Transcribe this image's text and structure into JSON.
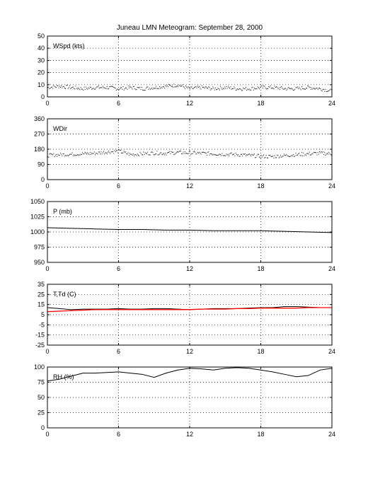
{
  "title": "Juneau LMN Meteogram: September 28, 2000",
  "colors": {
    "axis": "#000000",
    "temperature": "#000000",
    "dewpoint": "#ff0000",
    "grid": "#000000"
  },
  "chart_data": [
    {
      "type": "scatter",
      "label": "WSpd (kts)",
      "xlim": [
        0,
        24
      ],
      "ylim": [
        0,
        50
      ],
      "xticks": [
        0,
        6,
        12,
        18,
        24
      ],
      "yticks": [
        0,
        10,
        20,
        30,
        40,
        50
      ],
      "grid": true,
      "series": [
        {
          "x": [
            0,
            1,
            2,
            3,
            4,
            5,
            6,
            7,
            8,
            9,
            10,
            11,
            12,
            13,
            14,
            15,
            16,
            17,
            18,
            19,
            20,
            21,
            22,
            23,
            24
          ],
          "values": [
            8,
            9,
            8,
            7,
            8,
            8,
            7,
            8,
            7,
            8,
            9,
            10,
            7,
            8,
            7,
            8,
            7,
            7,
            8,
            8,
            7,
            7,
            8,
            7,
            5
          ]
        }
      ]
    },
    {
      "type": "scatter",
      "label": "WDir",
      "xlim": [
        0,
        24
      ],
      "ylim": [
        0,
        360
      ],
      "xticks": [
        0,
        6,
        12,
        18,
        24
      ],
      "yticks": [
        0,
        90,
        180,
        270,
        360
      ],
      "grid": true,
      "series": [
        {
          "x": [
            0,
            1,
            2,
            3,
            4,
            5,
            6,
            7,
            8,
            9,
            10,
            11,
            12,
            13,
            14,
            15,
            16,
            17,
            18,
            19,
            20,
            21,
            22,
            23,
            24
          ],
          "values": [
            145,
            150,
            152,
            155,
            158,
            165,
            170,
            150,
            155,
            160,
            158,
            162,
            160,
            158,
            155,
            152,
            150,
            145,
            140,
            138,
            145,
            150,
            155,
            158,
            155
          ]
        }
      ]
    },
    {
      "type": "line",
      "label": "P (mb)",
      "xlim": [
        0,
        24
      ],
      "ylim": [
        950,
        1050
      ],
      "xticks": [
        0,
        6,
        12,
        18,
        24
      ],
      "yticks": [
        950,
        975,
        1000,
        1025,
        1050
      ],
      "grid": true,
      "series": [
        {
          "x": [
            0,
            2,
            4,
            6,
            8,
            10,
            12,
            14,
            16,
            18,
            20,
            22,
            24
          ],
          "values": [
            1007,
            1006,
            1005,
            1004,
            1004,
            1003,
            1003,
            1002,
            1002,
            1002,
            1001,
            1000,
            999
          ]
        }
      ]
    },
    {
      "type": "line",
      "label": "T,Td (C)",
      "xlim": [
        0,
        24
      ],
      "ylim": [
        -25,
        35
      ],
      "xticks": [
        0,
        6,
        12,
        18,
        24
      ],
      "yticks": [
        -25,
        -15,
        -5,
        5,
        15,
        25,
        35
      ],
      "grid": true,
      "series": [
        {
          "x": [
            0,
            1,
            2,
            3,
            4,
            5,
            6,
            7,
            8,
            9,
            10,
            11,
            12,
            13,
            14,
            15,
            16,
            17,
            18,
            19,
            20,
            21,
            22,
            23,
            24
          ],
          "values": [
            12,
            11,
            10,
            10.5,
            10.5,
            10.5,
            11,
            10.5,
            10.5,
            11,
            11,
            10.5,
            10,
            10.5,
            11,
            11,
            11,
            11.5,
            12,
            12,
            13,
            13,
            12.5,
            12,
            12
          ]
        },
        {
          "x": [
            0,
            1,
            2,
            3,
            4,
            5,
            6,
            7,
            8,
            9,
            10,
            11,
            12,
            13,
            14,
            15,
            16,
            17,
            18,
            19,
            20,
            21,
            22,
            23,
            24
          ],
          "values": [
            8,
            8.5,
            9,
            9.5,
            10,
            10,
            10,
            10,
            10,
            10,
            10,
            10,
            10,
            10.5,
            10.5,
            10.5,
            11,
            11,
            11.5,
            11.5,
            11.5,
            11.5,
            12,
            12,
            12
          ]
        }
      ]
    },
    {
      "type": "line",
      "label": "RH (%)",
      "xlim": [
        0,
        24
      ],
      "ylim": [
        0,
        100
      ],
      "xticks": [
        0,
        6,
        12,
        18,
        24
      ],
      "yticks": [
        0,
        25,
        50,
        75,
        100
      ],
      "grid": true,
      "series": [
        {
          "x": [
            0,
            1,
            2,
            3,
            4,
            5,
            6,
            7,
            8,
            9,
            10,
            11,
            12,
            13,
            14,
            15,
            16,
            17,
            18,
            19,
            20,
            21,
            22,
            23,
            24
          ],
          "values": [
            77,
            80,
            85,
            90,
            90,
            91,
            92,
            90,
            88,
            83,
            90,
            95,
            98,
            97,
            95,
            98,
            99,
            98,
            95,
            92,
            88,
            84,
            86,
            95,
            98
          ]
        }
      ]
    }
  ]
}
